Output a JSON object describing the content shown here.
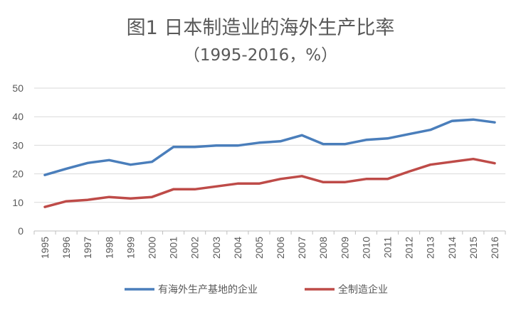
{
  "chart_data": {
    "type": "line",
    "title": "图1 日本制造业的海外生产比率",
    "subtitle": "（1995-2016，%）",
    "categories": [
      "1995",
      "1996",
      "1997",
      "1998",
      "1999",
      "2000",
      "2001",
      "2002",
      "2003",
      "2004",
      "2005",
      "2006",
      "2007",
      "2008",
      "2009",
      "2010",
      "2011",
      "2012",
      "2013",
      "2014",
      "2015",
      "2016"
    ],
    "series": [
      {
        "name": "有海外生产基地的企业",
        "color": "#4A7EBB",
        "values": [
          19.6,
          21.8,
          23.8,
          24.8,
          23.2,
          24.2,
          29.4,
          29.4,
          29.9,
          29.9,
          30.9,
          31.4,
          33.5,
          30.4,
          30.4,
          31.9,
          32.4,
          33.9,
          35.4,
          38.5,
          39.0,
          38.0
        ]
      },
      {
        "name": "全制造企业",
        "color": "#BE4B48",
        "values": [
          8.4,
          10.4,
          10.9,
          11.9,
          11.4,
          11.9,
          14.6,
          14.6,
          15.6,
          16.6,
          16.6,
          18.2,
          19.2,
          17.1,
          17.1,
          18.2,
          18.2,
          20.8,
          23.2,
          24.2,
          25.2,
          23.7
        ]
      }
    ],
    "y_ticks": [
      "0",
      "10",
      "20",
      "30",
      "40",
      "50"
    ],
    "ylim": [
      0,
      50
    ],
    "grid": true,
    "legend_position": "bottom"
  }
}
